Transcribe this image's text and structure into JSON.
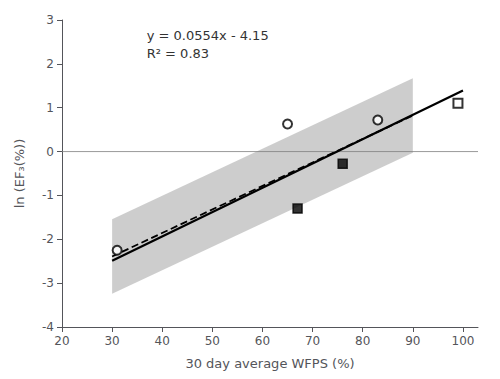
{
  "chart_data": {
    "type": "scatter",
    "xlabel": "30 day average WFPS (%)",
    "ylabel": "ln (EF₃(%))",
    "annotations": [
      "y = 0.0554x - 4.15",
      "R² = 0.83"
    ],
    "xlim": [
      20,
      103
    ],
    "xticks": [
      20,
      30,
      40,
      50,
      60,
      70,
      80,
      90,
      100
    ],
    "ylim": [
      -4,
      3
    ],
    "yticks": [
      -4,
      -3,
      -2,
      -1,
      0,
      1,
      2,
      3
    ],
    "grid": false,
    "series": [
      {
        "type": "band",
        "x": [
          30,
          90
        ],
        "lower": [
          -3.242,
          -0.026
        ],
        "upper": [
          -1.542,
          1.674
        ],
        "color": "#b8b8b8"
      },
      {
        "type": "line",
        "x": [
          30,
          90
        ],
        "values": [
          -2.392,
          0.824
        ],
        "color": "black",
        "line_style": "dashed"
      },
      {
        "type": "line",
        "x": [
          30,
          100
        ],
        "values": [
          -2.488,
          1.39
        ],
        "color": "black",
        "line_style": "solid"
      },
      {
        "type": "hline",
        "values": [
          0
        ],
        "color": "gray"
      },
      {
        "type": "scatter",
        "x": [
          31,
          65,
          83
        ],
        "values": [
          -2.25,
          0.63,
          0.72
        ],
        "marker": "circle-open",
        "color": "black"
      },
      {
        "type": "scatter",
        "x": [
          67,
          76
        ],
        "values": [
          -1.3,
          -0.28
        ],
        "marker": "square",
        "color": "black"
      },
      {
        "type": "scatter",
        "x": [
          99
        ],
        "values": [
          1.1
        ],
        "marker": "square-open",
        "color": "black"
      }
    ]
  }
}
